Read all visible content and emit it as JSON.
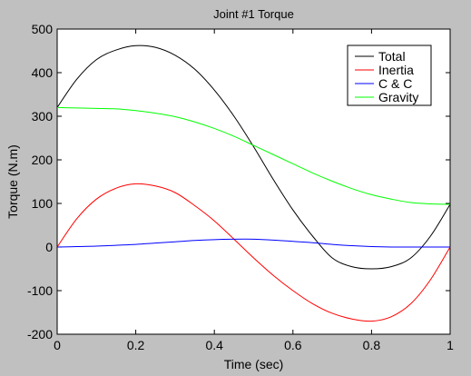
{
  "window": {
    "background": "#c0c0c0"
  },
  "chart_data": {
    "type": "line",
    "title": "Joint #1 Torque",
    "xlabel": "Time (sec)",
    "ylabel": "Torque (N.m)",
    "xlim": [
      0,
      1
    ],
    "ylim": [
      -200,
      500
    ],
    "xticks": [
      0,
      0.2,
      0.4,
      0.6,
      0.8,
      1
    ],
    "yticks": [
      -200,
      -100,
      0,
      100,
      200,
      300,
      400,
      500
    ],
    "xtick_labels": [
      "0",
      "0.2",
      "0.4",
      "0.6",
      "0.8",
      "1"
    ],
    "ytick_labels": [
      "-200",
      "-100",
      "0",
      "100",
      "200",
      "300",
      "400",
      "500"
    ],
    "grid": false,
    "legend_position": "top-right",
    "x": [
      0,
      0.05,
      0.1,
      0.15,
      0.2,
      0.25,
      0.3,
      0.35,
      0.4,
      0.45,
      0.5,
      0.55,
      0.6,
      0.65,
      0.7,
      0.75,
      0.8,
      0.85,
      0.9,
      0.95,
      1
    ],
    "series": [
      {
        "name": "Total",
        "color": "#000000",
        "values": [
          320,
          385,
          430,
          452,
          462,
          458,
          440,
          408,
          360,
          300,
          230,
          155,
          85,
          25,
          -25,
          -45,
          -50,
          -45,
          -25,
          25,
          98
        ]
      },
      {
        "name": "Inertia",
        "color": "#ff0000",
        "values": [
          0,
          65,
          110,
          135,
          145,
          140,
          125,
          95,
          60,
          18,
          -25,
          -65,
          -100,
          -130,
          -152,
          -165,
          -170,
          -160,
          -130,
          -75,
          0
        ]
      },
      {
        "name": "C & C",
        "color": "#0000ff",
        "values": [
          0,
          1,
          2,
          4,
          6,
          9,
          12,
          15,
          17,
          18,
          18,
          16,
          13,
          10,
          6,
          3,
          1,
          0,
          0,
          0,
          0
        ]
      },
      {
        "name": "Gravity",
        "color": "#00ff00",
        "values": [
          320,
          319,
          318,
          317,
          313,
          307,
          299,
          287,
          272,
          254,
          233,
          212,
          191,
          170,
          151,
          134,
          120,
          110,
          102,
          99,
          98
        ]
      }
    ]
  }
}
